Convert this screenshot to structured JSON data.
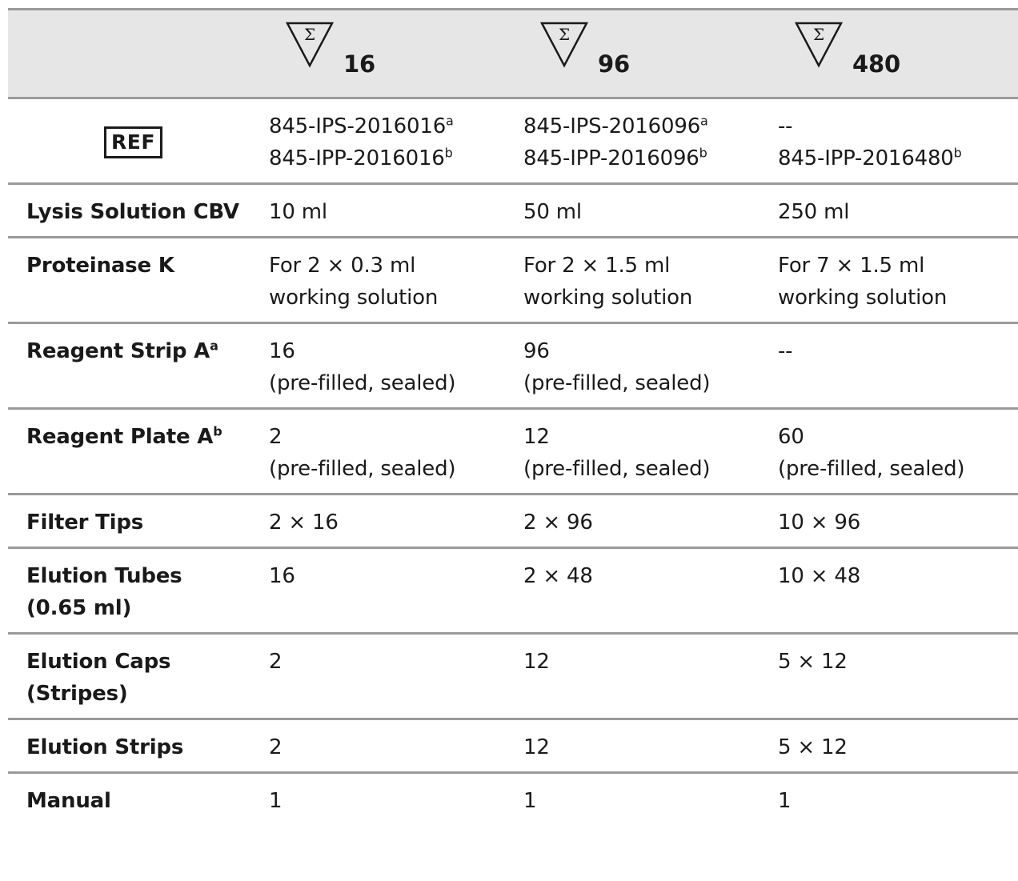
{
  "header": {
    "pack_sizes": [
      "16",
      "96",
      "480"
    ],
    "pack_symbol": "Σ"
  },
  "ref": {
    "symbol": "REF",
    "col1": {
      "line1": "845-IPS-2016016",
      "sup1": "a",
      "line2": "845-IPP-2016016",
      "sup2": "b"
    },
    "col2": {
      "line1": "845-IPS-2016096",
      "sup1": "a",
      "line2": "845-IPP-2016096",
      "sup2": "b"
    },
    "col3": {
      "line1": "--",
      "sup1": "",
      "line2": "845-IPP-2016480",
      "sup2": "b"
    }
  },
  "rows": [
    {
      "label": "Lysis Solution CBV",
      "label_sup": "",
      "v1": [
        "10 ml"
      ],
      "v2": [
        "50 ml"
      ],
      "v3": [
        "250 ml"
      ]
    },
    {
      "label": "Proteinase K",
      "label_sup": "",
      "v1": [
        "For 2 × 0.3 ml",
        "working solution"
      ],
      "v2": [
        "For 2 × 1.5 ml",
        "working solution"
      ],
      "v3": [
        "For 7 × 1.5 ml",
        "working solution"
      ]
    },
    {
      "label": "Reagent Strip A",
      "label_sup": "a",
      "v1": [
        "16",
        "(pre-filled, sealed)"
      ],
      "v2": [
        "96",
        "(pre-filled, sealed)"
      ],
      "v3": [
        "--"
      ]
    },
    {
      "label": "Reagent Plate A",
      "label_sup": "b",
      "v1": [
        "2",
        "(pre-filled, sealed)"
      ],
      "v2": [
        "12",
        "(pre-filled, sealed)"
      ],
      "v3": [
        "60",
        "(pre-filled, sealed)"
      ]
    },
    {
      "label": "Filter Tips",
      "label_sup": "",
      "v1": [
        "2 × 16"
      ],
      "v2": [
        "2 × 96"
      ],
      "v3": [
        "10 × 96"
      ]
    },
    {
      "label": "Elution Tubes",
      "label2": "(0.65 ml)",
      "label_sup": "",
      "v1": [
        "16"
      ],
      "v2": [
        "2 × 48"
      ],
      "v3": [
        "10 × 48"
      ]
    },
    {
      "label": "Elution Caps",
      "label2": "(Stripes)",
      "label_sup": "",
      "v1": [
        "2"
      ],
      "v2": [
        "12"
      ],
      "v3": [
        "5 × 12"
      ]
    },
    {
      "label": "Elution Strips",
      "label_sup": "",
      "v1": [
        "2"
      ],
      "v2": [
        "12"
      ],
      "v3": [
        "5 × 12"
      ]
    },
    {
      "label": "Manual",
      "label_sup": "",
      "v1": [
        "1"
      ],
      "v2": [
        "1"
      ],
      "v3": [
        "1"
      ]
    }
  ]
}
